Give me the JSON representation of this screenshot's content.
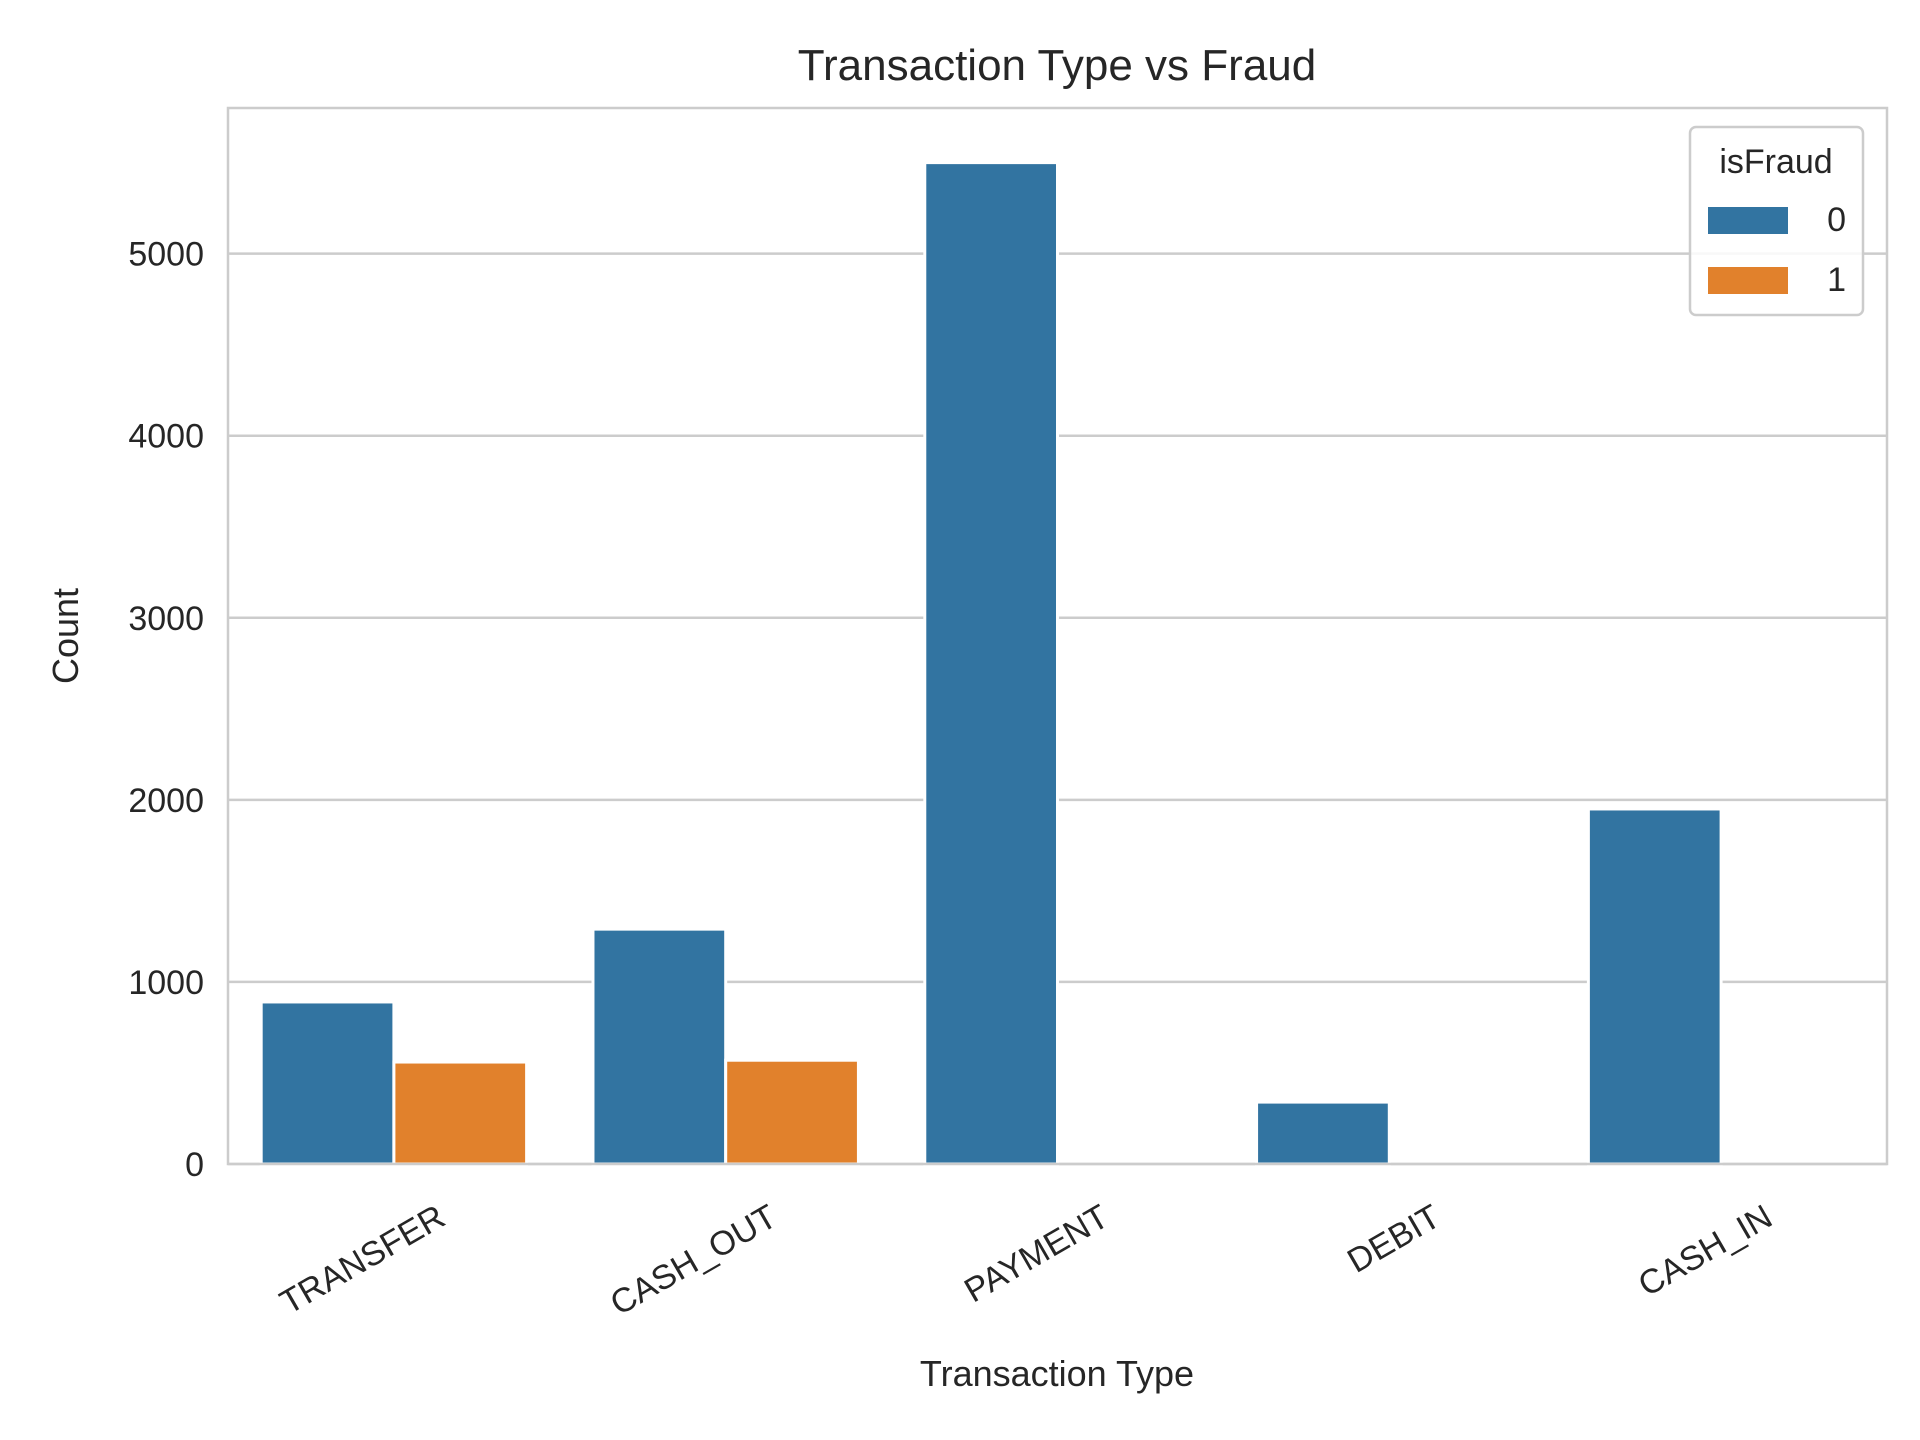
{
  "chart_data": {
    "type": "bar",
    "title": "Transaction Type vs Fraud",
    "xlabel": "Transaction Type",
    "ylabel": "Count",
    "categories": [
      "TRANSFER",
      "CASH_OUT",
      "PAYMENT",
      "DEBIT",
      "CASH_IN"
    ],
    "series": [
      {
        "name": "0",
        "color": "#3274a1",
        "values": [
          890,
          1290,
          5500,
          340,
          1950
        ]
      },
      {
        "name": "1",
        "color": "#e1812c",
        "values": [
          560,
          570,
          0,
          0,
          0
        ]
      }
    ],
    "ylim": [
      0,
      5800
    ],
    "yticks": [
      0,
      1000,
      2000,
      3000,
      4000,
      5000
    ],
    "grid": "horizontal",
    "legend": {
      "title": "isFraud",
      "placement": "top-right"
    }
  }
}
